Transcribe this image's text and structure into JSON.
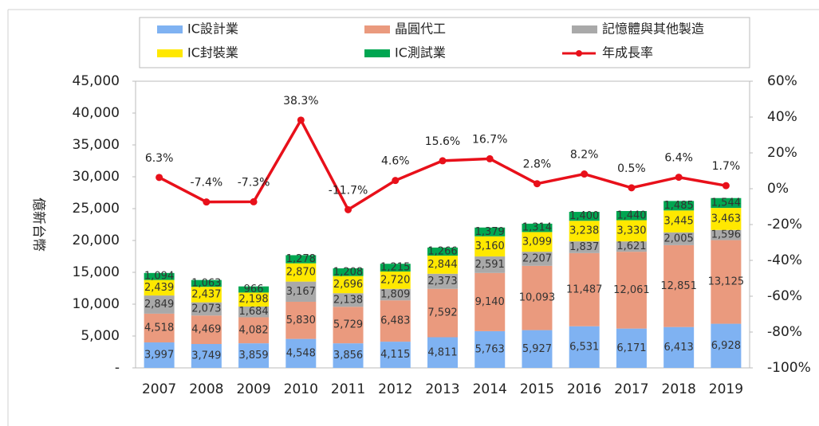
{
  "chart_data": {
    "type": "bar",
    "categories": [
      "2007",
      "2008",
      "2009",
      "2010",
      "2011",
      "2012",
      "2013",
      "2014",
      "2015",
      "2016",
      "2017",
      "2018",
      "2019"
    ],
    "ylabel": "億新台幣",
    "ylim": [
      0,
      45000
    ],
    "yticks": [
      {
        "value": 0,
        "label": "-"
      },
      {
        "value": 5000,
        "label": "5,000"
      },
      {
        "value": 10000,
        "label": "10,000"
      },
      {
        "value": 15000,
        "label": "15,000"
      },
      {
        "value": 20000,
        "label": "20,000"
      },
      {
        "value": 25000,
        "label": "25,000"
      },
      {
        "value": 30000,
        "label": "30,000"
      },
      {
        "value": 35000,
        "label": "35,000"
      },
      {
        "value": 40000,
        "label": "40,000"
      },
      {
        "value": 45000,
        "label": "45,000"
      }
    ],
    "y2lim": [
      -100,
      60
    ],
    "y2ticks": [
      {
        "value": -100,
        "label": "-100%"
      },
      {
        "value": -80,
        "label": "-80%"
      },
      {
        "value": -60,
        "label": "-60%"
      },
      {
        "value": -40,
        "label": "-40%"
      },
      {
        "value": -20,
        "label": "-20%"
      },
      {
        "value": 0,
        "label": "0%"
      },
      {
        "value": 20,
        "label": "20%"
      },
      {
        "value": 40,
        "label": "40%"
      },
      {
        "value": 60,
        "label": "60%"
      }
    ],
    "series": [
      {
        "name": "IC設計業",
        "color": "#7fb2f2",
        "values": [
          3997,
          3749,
          3859,
          4548,
          3856,
          4115,
          4811,
          5763,
          5927,
          6531,
          6171,
          6413,
          6928
        ],
        "value_labels": [
          "3,997",
          "3,749",
          "3,859",
          "4,548",
          "3,856",
          "4,115",
          "4,811",
          "5,763",
          "5,927",
          "6,531",
          "6,171",
          "6,413",
          "6,928"
        ]
      },
      {
        "name": "晶圓代工",
        "color": "#ea9a7e",
        "values": [
          4518,
          4469,
          4082,
          5830,
          5729,
          6483,
          7592,
          9140,
          10093,
          11487,
          12061,
          12851,
          13125
        ],
        "value_labels": [
          "4,518",
          "4,469",
          "4,082",
          "5,830",
          "5,729",
          "6,483",
          "7,592",
          "9,140",
          "10,093",
          "11,487",
          "12,061",
          "12,851",
          "13,125"
        ]
      },
      {
        "name": "記憶體與其他製造",
        "color": "#a9a9a9",
        "values": [
          2849,
          2073,
          1684,
          3167,
          2138,
          1809,
          2373,
          2591,
          2207,
          1837,
          1621,
          2005,
          1596
        ],
        "value_labels": [
          "2,849",
          "2,073",
          "1,684",
          "3,167",
          "2,138",
          "1,809",
          "2,373",
          "2,591",
          "2,207",
          "1,837",
          "1,621",
          "2,005",
          "1,596"
        ]
      },
      {
        "name": "IC封裝業",
        "color": "#ffe800",
        "values": [
          2439,
          2437,
          2198,
          2870,
          2696,
          2720,
          2844,
          3160,
          3099,
          3238,
          3330,
          3445,
          3463
        ],
        "value_labels": [
          "2,439",
          "2,437",
          "2,198",
          "2,870",
          "2,696",
          "2,720",
          "2,844",
          "3,160",
          "3,099",
          "3,238",
          "3,330",
          "3,445",
          "3,463"
        ]
      },
      {
        "name": "IC測試業",
        "color": "#00a651",
        "values": [
          1094,
          1063,
          966,
          1278,
          1208,
          1215,
          1266,
          1379,
          1314,
          1400,
          1440,
          1485,
          1544
        ],
        "value_labels": [
          "1,094",
          "1,063",
          "966",
          "1,278",
          "1,208",
          "1,215",
          "1,266",
          "1,379",
          "1,314",
          "1,400",
          "1,440",
          "1,485",
          "1,544"
        ]
      },
      {
        "name": "年成長率",
        "color": "#e8101a",
        "type": "line",
        "axis": "y2",
        "values": [
          6.3,
          -7.4,
          -7.3,
          38.3,
          -11.7,
          4.6,
          15.6,
          16.7,
          2.8,
          8.2,
          0.5,
          6.4,
          1.7
        ],
        "value_labels": [
          "6.3%",
          "-7.4%",
          "-7.3%",
          "38.3%",
          "-11.7%",
          "4.6%",
          "15.6%",
          "16.7%",
          "2.8%",
          "8.2%",
          "0.5%",
          "6.4%",
          "1.7%"
        ]
      }
    ]
  }
}
